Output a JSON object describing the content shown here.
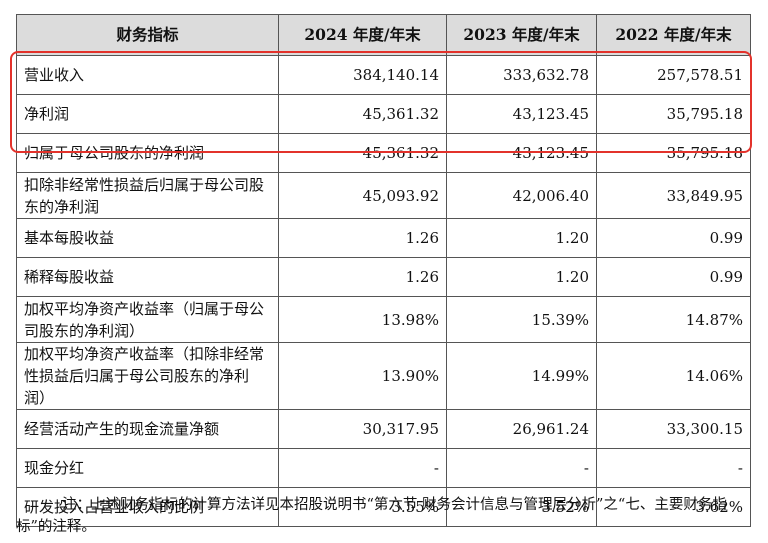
{
  "table": {
    "headers": [
      "财务指标",
      "2024 年度/年末",
      "2023 年度/年末",
      "2022 年度/年末"
    ],
    "rows": [
      {
        "label": "营业收入",
        "values": [
          "384,140.14",
          "333,632.78",
          "257,578.51"
        ]
      },
      {
        "label": "净利润",
        "values": [
          "45,361.32",
          "43,123.45",
          "35,795.18"
        ]
      },
      {
        "label": "归属于母公司股东的净利润",
        "values": [
          "45,361.32",
          "43,123.45",
          "35,795.18"
        ]
      },
      {
        "label": "扣除非经常性损益后归属于母公司股东的净利润",
        "values": [
          "45,093.92",
          "42,006.40",
          "33,849.95"
        ]
      },
      {
        "label": "基本每股收益",
        "values": [
          "1.26",
          "1.20",
          "0.99"
        ]
      },
      {
        "label": "稀释每股收益",
        "values": [
          "1.26",
          "1.20",
          "0.99"
        ]
      },
      {
        "label": "加权平均净资产收益率（归属于母公司股东的净利润）",
        "values": [
          "13.98%",
          "15.39%",
          "14.87%"
        ]
      },
      {
        "label": "加权平均净资产收益率（扣除非经常性损益后归属于母公司股东的净利润）",
        "values": [
          "13.90%",
          "14.99%",
          "14.06%"
        ]
      },
      {
        "label": "经营活动产生的现金流量净额",
        "values": [
          "30,317.95",
          "26,961.24",
          "33,300.15"
        ]
      },
      {
        "label": "现金分红",
        "values": [
          "-",
          "-",
          "-"
        ]
      },
      {
        "label": "研发投入占营业收入的比例",
        "values": [
          "3.55%",
          "3.52%",
          "3.62%"
        ]
      }
    ]
  },
  "note": "注：上述财务指标的计算方法详见本招股说明书“第六节 财务会计信息与管理层分析”之“七、主要财务指标”的注释。",
  "colors": {
    "highlight_box": "#e3322b",
    "header_bg": "#dcdcdc"
  }
}
